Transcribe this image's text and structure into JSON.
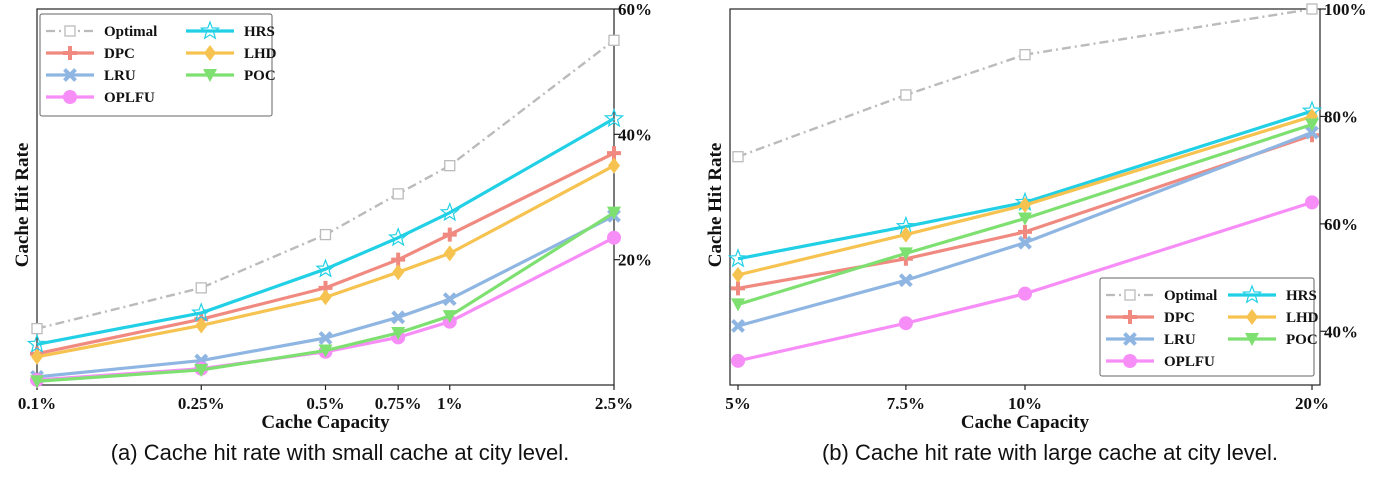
{
  "chart_data": [
    {
      "type": "line",
      "caption": "(a) Cache hit rate with small cache at city level.",
      "xlabel": "Cache Capacity",
      "ylabel": "Cache Hit Rate",
      "x_tick_labels": [
        "0.1%",
        "0.25%",
        "0.5%",
        "0.75%",
        "1%",
        "2.5%"
      ],
      "x": [
        0.1,
        0.25,
        0.5,
        0.75,
        1.0,
        2.5
      ],
      "x_scale": "log",
      "xlim": [
        0.1,
        2.5
      ],
      "y_tick_labels": [
        "20%",
        "40%",
        "60%"
      ],
      "y_ticks": [
        20,
        40,
        60
      ],
      "ylim": [
        0,
        60
      ],
      "y_axis_side": "right",
      "legend": {
        "placement": "top-left",
        "columns": 2
      },
      "series": [
        {
          "name": "Optimal",
          "color": "#bbbbbb",
          "style": "dashdot",
          "marker": "square-open",
          "values": [
            9,
            15.5,
            24,
            30.5,
            35,
            55
          ]
        },
        {
          "name": "DPC",
          "color": "#f08a80",
          "style": "solid",
          "marker": "plus",
          "values": [
            5,
            10.5,
            15.5,
            20,
            24,
            37
          ]
        },
        {
          "name": "LRU",
          "color": "#8fb6e2",
          "style": "solid",
          "marker": "x",
          "values": [
            1.3,
            3.9,
            7.5,
            10.8,
            13.7,
            27
          ]
        },
        {
          "name": "OPLFU",
          "color": "#f78ef7",
          "style": "solid",
          "marker": "circle",
          "values": [
            0.8,
            2.6,
            5.3,
            7.6,
            10.1,
            23.5
          ]
        },
        {
          "name": "HRS",
          "color": "#22d0e6",
          "style": "solid",
          "marker": "star-open",
          "values": [
            6.5,
            11.5,
            18.5,
            23.5,
            27.5,
            42.5
          ]
        },
        {
          "name": "LHD",
          "color": "#f6c350",
          "style": "solid",
          "marker": "diamond",
          "values": [
            4.5,
            9.5,
            14,
            18,
            21,
            35
          ]
        },
        {
          "name": "POC",
          "color": "#7ee070",
          "style": "solid",
          "marker": "triangle-down",
          "values": [
            0.6,
            2.4,
            5.5,
            8.3,
            11,
            27.5
          ]
        }
      ]
    },
    {
      "type": "line",
      "caption": "(b) Cache hit rate with large cache at city level.",
      "xlabel": "Cache Capacity",
      "ylabel": "Cache Hit Rate",
      "x_tick_labels": [
        "5%",
        "7.5%",
        "10%",
        "20%"
      ],
      "x": [
        5,
        7.5,
        10,
        20
      ],
      "x_scale": "log",
      "xlim": [
        5,
        20
      ],
      "y_tick_labels": [
        "40%",
        "60%",
        "80%",
        "100%"
      ],
      "y_ticks": [
        40,
        60,
        80,
        100
      ],
      "ylim": [
        30,
        100
      ],
      "y_axis_side": "right",
      "legend": {
        "placement": "bottom-right",
        "columns": 2
      },
      "series": [
        {
          "name": "Optimal",
          "color": "#bbbbbb",
          "style": "dashdot",
          "marker": "square-open",
          "values": [
            72.5,
            84,
            91.5,
            100
          ]
        },
        {
          "name": "DPC",
          "color": "#f08a80",
          "style": "solid",
          "marker": "plus",
          "values": [
            48,
            53.5,
            58.5,
            76.5
          ]
        },
        {
          "name": "LRU",
          "color": "#8fb6e2",
          "style": "solid",
          "marker": "x",
          "values": [
            41,
            49.5,
            56.5,
            77
          ]
        },
        {
          "name": "OPLFU",
          "color": "#f78ef7",
          "style": "solid",
          "marker": "circle",
          "values": [
            34.5,
            41.5,
            47,
            64
          ]
        },
        {
          "name": "HRS",
          "color": "#22d0e6",
          "style": "solid",
          "marker": "star-open",
          "values": [
            53.5,
            59.5,
            64,
            81
          ]
        },
        {
          "name": "LHD",
          "color": "#f6c350",
          "style": "solid",
          "marker": "diamond",
          "values": [
            50.5,
            58,
            63.5,
            80
          ]
        },
        {
          "name": "POC",
          "color": "#7ee070",
          "style": "solid",
          "marker": "triangle-down",
          "values": [
            45,
            54.5,
            61,
            78.5
          ]
        }
      ]
    }
  ]
}
